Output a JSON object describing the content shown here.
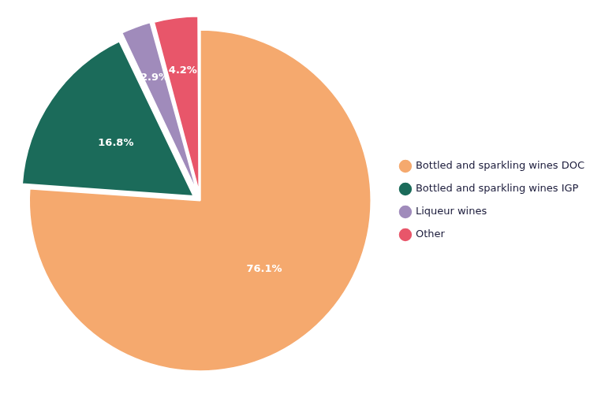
{
  "chart_data": {
    "type": "pie",
    "categories": [
      "Bottled and sparkling wines DOC",
      "Bottled and sparkling wines IGP",
      "Liqueur wines",
      "Other"
    ],
    "values": [
      76.1,
      16.8,
      2.9,
      4.2
    ],
    "value_labels": [
      "76.1%",
      "16.8%",
      "2.9%",
      "4.2%"
    ],
    "colors": [
      "#F5A96E",
      "#1B6B5A",
      "#A08BBB",
      "#E8566A"
    ],
    "data_labels": true,
    "legend": "right"
  }
}
